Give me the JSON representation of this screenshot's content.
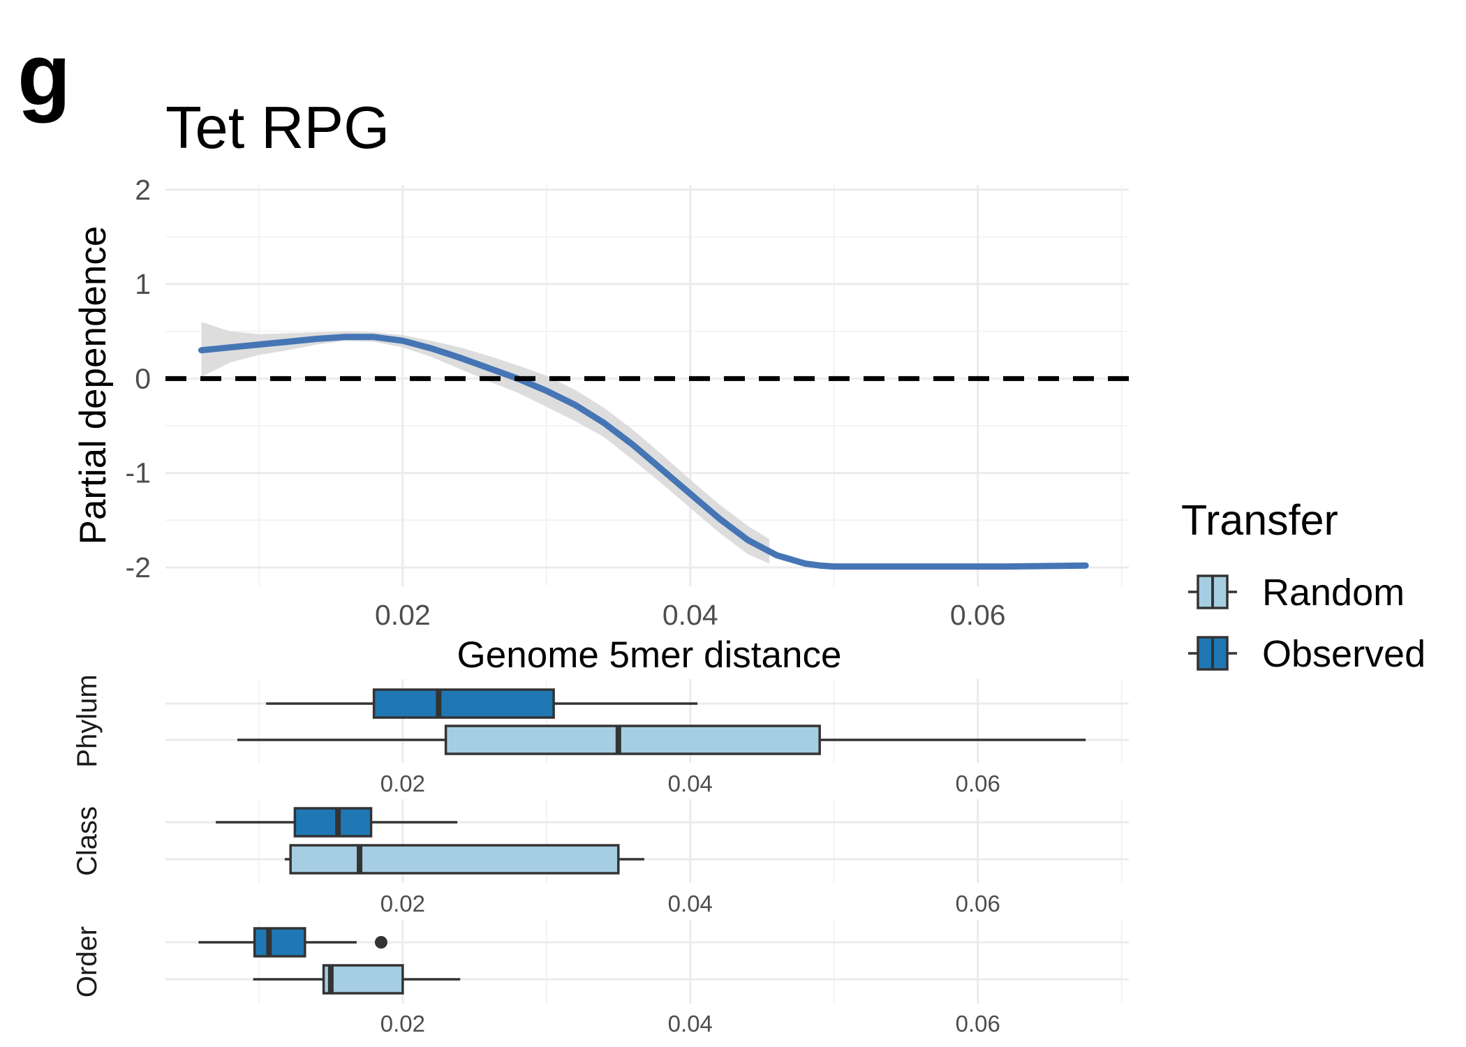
{
  "panel_label": "g",
  "chart_data": {
    "pd_plot": {
      "type": "line",
      "title": "Tet RPG",
      "xlabel": "Genome 5mer distance",
      "ylabel": "Partial dependence",
      "xlim": [
        0.0035,
        0.0705
      ],
      "ylim": [
        -2.2,
        2.05
      ],
      "x_ticks": [
        0.02,
        0.04,
        0.06
      ],
      "x_tick_labels": [
        "0.02",
        "0.04",
        "0.06"
      ],
      "y_ticks": [
        2,
        1,
        0,
        -1,
        -2
      ],
      "y_tick_labels": [
        "2",
        "1",
        "0",
        "-1",
        "-2"
      ],
      "reference_line": {
        "y": 0,
        "style": "dashed",
        "color": "#000000"
      },
      "line_color": "#4575b4",
      "ribbon_color": "#d9d9d9",
      "smooth_line": {
        "x": [
          0.006,
          0.008,
          0.01,
          0.012,
          0.014,
          0.016,
          0.018,
          0.02,
          0.022,
          0.024,
          0.026,
          0.028,
          0.03,
          0.032,
          0.034,
          0.036,
          0.038,
          0.04,
          0.042,
          0.044,
          0.046,
          0.048,
          0.049,
          0.05,
          0.054,
          0.058,
          0.062,
          0.065,
          0.0675
        ],
        "y": [
          0.3,
          0.33,
          0.36,
          0.39,
          0.42,
          0.44,
          0.44,
          0.4,
          0.32,
          0.22,
          0.11,
          0.0,
          -0.13,
          -0.28,
          -0.47,
          -0.7,
          -0.96,
          -1.22,
          -1.48,
          -1.71,
          -1.87,
          -1.96,
          -1.98,
          -1.99,
          -1.99,
          -1.99,
          -1.99,
          -1.985,
          -1.98
        ]
      },
      "confidence_band": {
        "x": [
          0.006,
          0.008,
          0.01,
          0.012,
          0.014,
          0.016,
          0.018,
          0.02,
          0.022,
          0.024,
          0.026,
          0.028,
          0.03,
          0.032,
          0.034,
          0.036,
          0.038,
          0.04,
          0.042,
          0.044,
          0.0455
        ],
        "lower": [
          0.02,
          0.17,
          0.25,
          0.3,
          0.36,
          0.4,
          0.39,
          0.33,
          0.23,
          0.1,
          -0.03,
          -0.15,
          -0.3,
          -0.45,
          -0.62,
          -0.86,
          -1.11,
          -1.37,
          -1.63,
          -1.86,
          -1.96
        ],
        "upper": [
          0.6,
          0.5,
          0.47,
          0.48,
          0.49,
          0.5,
          0.49,
          0.46,
          0.4,
          0.33,
          0.24,
          0.14,
          0.03,
          -0.12,
          -0.31,
          -0.54,
          -0.8,
          -1.07,
          -1.33,
          -1.56,
          -1.7
        ]
      }
    },
    "boxplots": {
      "type": "boxplot",
      "xlim": [
        0.0035,
        0.0705
      ],
      "x_ticks": [
        0.02,
        0.04,
        0.06
      ],
      "x_tick_labels": [
        "0.02",
        "0.04",
        "0.06"
      ],
      "facets": [
        {
          "name": "Phylum",
          "boxes": [
            {
              "group": "Observed",
              "whisker_low": 0.0105,
              "q1": 0.018,
              "median": 0.0225,
              "q3": 0.0305,
              "whisker_high": 0.0405,
              "outliers": []
            },
            {
              "group": "Random",
              "whisker_low": 0.0085,
              "q1": 0.023,
              "median": 0.035,
              "q3": 0.049,
              "whisker_high": 0.0675,
              "outliers": []
            }
          ]
        },
        {
          "name": "Class",
          "boxes": [
            {
              "group": "Observed",
              "whisker_low": 0.007,
              "q1": 0.0125,
              "median": 0.0155,
              "q3": 0.0178,
              "whisker_high": 0.0238,
              "outliers": []
            },
            {
              "group": "Random",
              "whisker_low": 0.0118,
              "q1": 0.0122,
              "median": 0.017,
              "q3": 0.035,
              "whisker_high": 0.0368,
              "outliers": []
            }
          ]
        },
        {
          "name": "Order",
          "boxes": [
            {
              "group": "Observed",
              "whisker_low": 0.0058,
              "q1": 0.0097,
              "median": 0.0107,
              "q3": 0.0132,
              "whisker_high": 0.0168,
              "outliers": [
                0.0185
              ]
            },
            {
              "group": "Random",
              "whisker_low": 0.0096,
              "q1": 0.0145,
              "median": 0.015,
              "q3": 0.02,
              "whisker_high": 0.024,
              "outliers": []
            }
          ]
        }
      ]
    },
    "legend": {
      "title": "Transfer",
      "placement": "right",
      "items": [
        {
          "label": "Random",
          "color": "#a6cee3"
        },
        {
          "label": "Observed",
          "color": "#1f78b4"
        }
      ]
    }
  }
}
